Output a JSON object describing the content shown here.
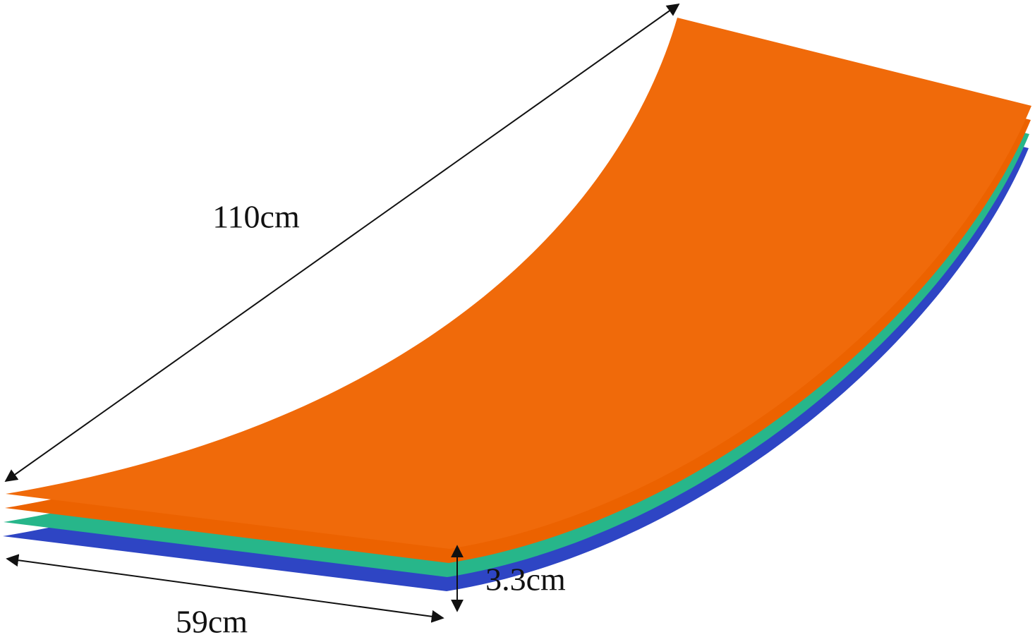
{
  "dimensions": {
    "length": "110cm",
    "width": "59cm",
    "thickness": "3.3cm"
  }
}
